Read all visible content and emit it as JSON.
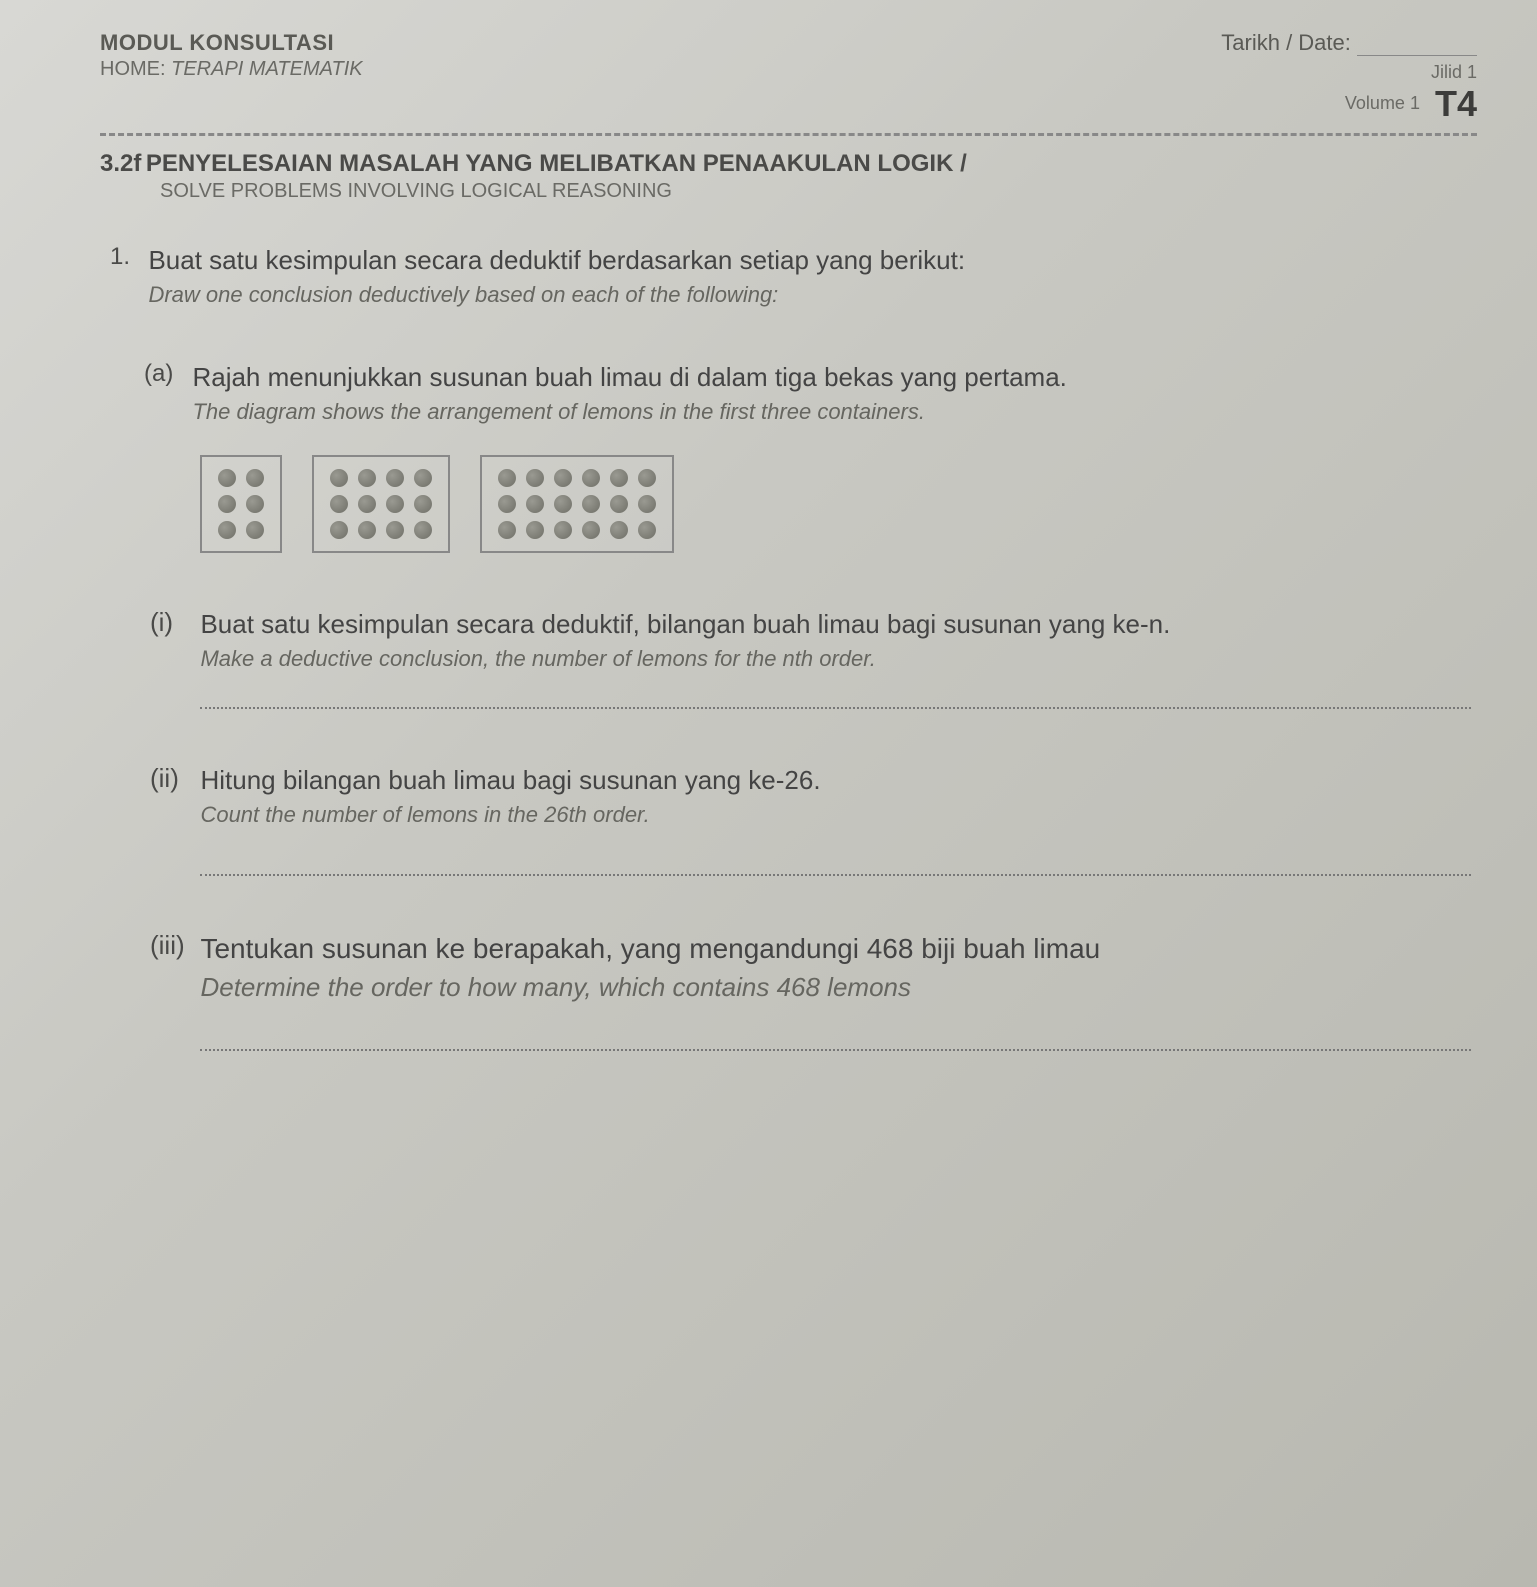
{
  "header": {
    "module_label": "MODUL KONSULTASI",
    "home_label": "HOME:",
    "home_value": "TERAPI MATEMATIK",
    "date_label": "Tarikh / Date:",
    "jilid_label": "Jilid 1",
    "volume_label": "Volume 1",
    "level_code": "T4"
  },
  "section": {
    "code": "3.2f",
    "title_my": "PENYELESAIAN MASALAH YANG MELIBATKAN PENAAKULAN LOGIK /",
    "title_en": "SOLVE PROBLEMS INVOLVING LOGICAL REASONING"
  },
  "q1": {
    "number": "1.",
    "text_my": "Buat satu kesimpulan secara deduktif berdasarkan setiap yang berikut:",
    "text_en": "Draw one conclusion deductively based on each of the following:"
  },
  "qa": {
    "label": "(a)",
    "text_my": "Rajah menunjukkan susunan buah limau di dalam tiga bekas yang pertama.",
    "text_en": "The diagram shows the arrangement of lemons in the first three containers."
  },
  "diagram": {
    "containers": [
      {
        "rows": 3,
        "cols": 2
      },
      {
        "rows": 3,
        "cols": 4
      },
      {
        "rows": 3,
        "cols": 6
      }
    ],
    "dot_color_light": "#9a9a92",
    "dot_color_dark": "#6e6e66",
    "border_color": "#888888"
  },
  "parts": {
    "i": {
      "label": "(i)",
      "text_my": "Buat satu kesimpulan secara deduktif, bilangan buah limau bagi susunan yang ke-n.",
      "text_en": "Make a deductive conclusion, the number of lemons for the nth order."
    },
    "ii": {
      "label": "(ii)",
      "text_my": "Hitung bilangan buah limau bagi susunan yang ke-26.",
      "text_en": "Count the number of lemons in the 26th order."
    },
    "iii": {
      "label": "(iii)",
      "text_my": "Tentukan susunan ke berapakah, yang mengandungi 468 biji buah limau",
      "text_en": "Determine the order to how many, which contains 468 lemons"
    }
  },
  "colors": {
    "page_bg_start": "#d8d8d4",
    "page_bg_end": "#b8b8b0",
    "text_primary": "#4a4a48",
    "text_secondary": "#6a6a65",
    "divider": "#888888"
  },
  "typography": {
    "body_fontsize_pt": 20,
    "heading_fontsize_pt": 18,
    "t4_fontsize_pt": 28,
    "en_italic": true
  }
}
